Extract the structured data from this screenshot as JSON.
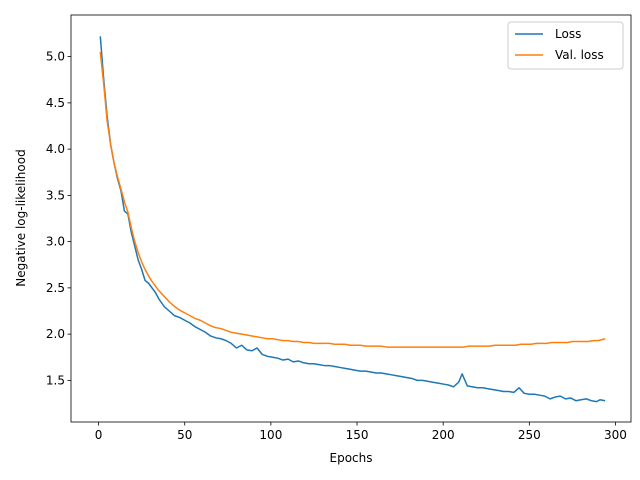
{
  "chart_data": {
    "type": "line",
    "title": "",
    "xlabel": "Epochs",
    "ylabel": "Negative log-likelihood",
    "xlim": [
      -16,
      309
    ],
    "ylim": [
      1.05,
      5.45
    ],
    "xticks": [
      0,
      50,
      100,
      150,
      200,
      250,
      300
    ],
    "yticks": [
      1.5,
      2.0,
      2.5,
      3.0,
      3.5,
      4.0,
      4.5,
      5.0
    ],
    "xtick_labels": [
      "0",
      "50",
      "100",
      "150",
      "200",
      "250",
      "300"
    ],
    "ytick_labels": [
      "1.5",
      "2.0",
      "2.5",
      "3.0",
      "3.5",
      "4.0",
      "4.5",
      "5.0"
    ],
    "grid": false,
    "legend": "top-right",
    "series": [
      {
        "name": "Loss",
        "color": "#1f77b4",
        "x": [
          1,
          3,
          5,
          7,
          9,
          11,
          13,
          15,
          17,
          19,
          21,
          23,
          25,
          27,
          29,
          31,
          33,
          35,
          38,
          41,
          44,
          47,
          50,
          53,
          56,
          59,
          62,
          65,
          68,
          71,
          74,
          77,
          80,
          83,
          86,
          89,
          92,
          95,
          98,
          101,
          104,
          107,
          110,
          113,
          116,
          119,
          122,
          125,
          128,
          131,
          134,
          137,
          140,
          143,
          146,
          149,
          152,
          155,
          158,
          161,
          164,
          167,
          170,
          173,
          176,
          179,
          182,
          185,
          188,
          191,
          194,
          197,
          200,
          203,
          206,
          209,
          211,
          214,
          217,
          220,
          223,
          226,
          229,
          232,
          235,
          238,
          241,
          244,
          247,
          250,
          253,
          256,
          259,
          262,
          265,
          268,
          271,
          274,
          277,
          280,
          283,
          286,
          289,
          291,
          294
        ],
        "y": [
          5.22,
          4.75,
          4.35,
          4.05,
          3.85,
          3.68,
          3.55,
          3.33,
          3.3,
          3.1,
          2.95,
          2.8,
          2.7,
          2.58,
          2.55,
          2.5,
          2.45,
          2.38,
          2.3,
          2.25,
          2.2,
          2.18,
          2.15,
          2.12,
          2.08,
          2.05,
          2.02,
          1.98,
          1.96,
          1.95,
          1.93,
          1.9,
          1.85,
          1.88,
          1.83,
          1.82,
          1.85,
          1.78,
          1.76,
          1.75,
          1.74,
          1.72,
          1.73,
          1.7,
          1.71,
          1.69,
          1.68,
          1.68,
          1.67,
          1.66,
          1.66,
          1.65,
          1.64,
          1.63,
          1.62,
          1.61,
          1.6,
          1.6,
          1.59,
          1.58,
          1.58,
          1.57,
          1.56,
          1.55,
          1.54,
          1.53,
          1.52,
          1.5,
          1.5,
          1.49,
          1.48,
          1.47,
          1.46,
          1.45,
          1.43,
          1.48,
          1.57,
          1.44,
          1.43,
          1.42,
          1.42,
          1.41,
          1.4,
          1.39,
          1.38,
          1.38,
          1.37,
          1.42,
          1.36,
          1.35,
          1.35,
          1.34,
          1.33,
          1.3,
          1.32,
          1.33,
          1.3,
          1.31,
          1.28,
          1.29,
          1.3,
          1.28,
          1.27,
          1.29,
          1.28
        ]
      },
      {
        "name": "Val. loss",
        "color": "#ff7f0e",
        "x": [
          1,
          3,
          5,
          7,
          9,
          11,
          13,
          15,
          17,
          19,
          21,
          23,
          25,
          27,
          29,
          31,
          33,
          35,
          38,
          41,
          44,
          47,
          50,
          53,
          56,
          59,
          62,
          65,
          68,
          71,
          74,
          77,
          80,
          83,
          86,
          89,
          92,
          95,
          98,
          101,
          104,
          107,
          110,
          113,
          116,
          119,
          122,
          125,
          128,
          131,
          134,
          137,
          140,
          143,
          146,
          149,
          152,
          155,
          158,
          161,
          164,
          167,
          170,
          173,
          176,
          179,
          182,
          185,
          188,
          191,
          194,
          197,
          200,
          203,
          206,
          209,
          212,
          215,
          218,
          221,
          224,
          227,
          230,
          233,
          236,
          239,
          242,
          245,
          248,
          251,
          254,
          257,
          260,
          263,
          266,
          269,
          272,
          275,
          278,
          281,
          284,
          287,
          290,
          294
        ],
        "y": [
          5.05,
          4.7,
          4.3,
          4.05,
          3.85,
          3.7,
          3.57,
          3.43,
          3.32,
          3.15,
          3.0,
          2.88,
          2.78,
          2.7,
          2.63,
          2.57,
          2.52,
          2.47,
          2.41,
          2.35,
          2.3,
          2.26,
          2.23,
          2.2,
          2.17,
          2.15,
          2.12,
          2.09,
          2.07,
          2.06,
          2.04,
          2.02,
          2.01,
          2.0,
          1.99,
          1.98,
          1.97,
          1.96,
          1.95,
          1.95,
          1.94,
          1.93,
          1.93,
          1.92,
          1.92,
          1.91,
          1.91,
          1.9,
          1.9,
          1.9,
          1.9,
          1.89,
          1.89,
          1.89,
          1.88,
          1.88,
          1.88,
          1.87,
          1.87,
          1.87,
          1.87,
          1.86,
          1.86,
          1.86,
          1.86,
          1.86,
          1.86,
          1.86,
          1.86,
          1.86,
          1.86,
          1.86,
          1.86,
          1.86,
          1.86,
          1.86,
          1.86,
          1.87,
          1.87,
          1.87,
          1.87,
          1.87,
          1.88,
          1.88,
          1.88,
          1.88,
          1.88,
          1.89,
          1.89,
          1.89,
          1.9,
          1.9,
          1.9,
          1.91,
          1.91,
          1.91,
          1.91,
          1.92,
          1.92,
          1.92,
          1.92,
          1.93,
          1.93,
          1.95
        ]
      }
    ]
  }
}
